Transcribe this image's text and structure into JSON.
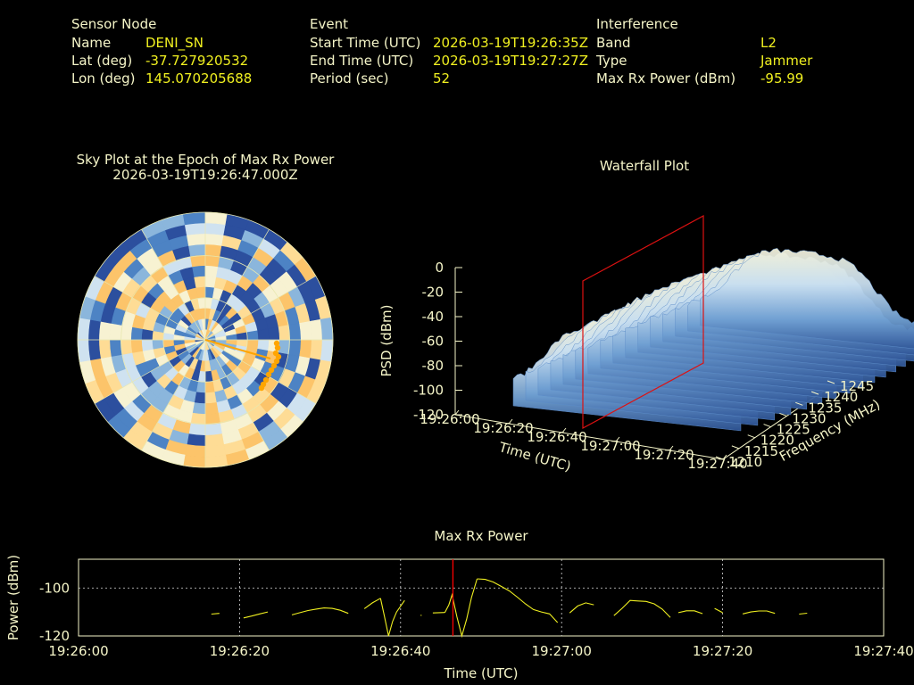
{
  "info": {
    "sensor": {
      "heading": "Sensor Node",
      "name_label": "Name",
      "name_value": "DENI_SN",
      "lat_label": "Lat (deg)",
      "lat_value": "-37.727920532",
      "lon_label": "Lon (deg)",
      "lon_value": "145.070205688"
    },
    "event": {
      "heading": "Event",
      "start_label": "Start Time (UTC)",
      "start_value": "2026-03-19T19:26:35Z",
      "end_label": "End Time (UTC)",
      "end_value": "2026-03-19T19:27:27Z",
      "period_label": "Period (sec)",
      "period_value": "52"
    },
    "interference": {
      "heading": "Interference",
      "band_label": "Band",
      "band_value": "L2",
      "type_label": "Type",
      "type_value": "Jammer",
      "maxrx_label": "Max Rx Power (dBm)",
      "maxrx_value": "-95.99"
    }
  },
  "colors": {
    "text": "#f5f5c8",
    "value": "#f0f020",
    "marker": "#ff0000",
    "track": "#ffa500",
    "line": "#f0f020"
  },
  "chart_data": [
    {
      "type": "heatmap",
      "title": "Sky Plot at the Epoch of Max Rx Power",
      "subtitle": "2026-03-19T19:26:47.000Z",
      "projection": "polar",
      "colormap": [
        "#2c4f9e",
        "#4d83c4",
        "#8bb6dc",
        "#cfe2f0",
        "#f7f2d2",
        "#fedc95",
        "#fcc46a"
      ],
      "track_color": "#ffa500"
    },
    {
      "type": "area",
      "title": "Waterfall Plot",
      "zlabel": "PSD (dBm)",
      "xlabel": "Time (UTC)",
      "ylabel": "Frequency (MHz)",
      "z_ticks": [
        "0",
        "-20",
        "-40",
        "-60",
        "-80",
        "-100",
        "-120"
      ],
      "zlim": [
        -120,
        0
      ],
      "x_ticks": [
        "19:26:00",
        "19:26:20",
        "19:26:40",
        "19:27:00",
        "19:27:20",
        "19:27:40"
      ],
      "y_ticks": [
        "1210",
        "1215",
        "1220",
        "1225",
        "1230",
        "1235",
        "1240",
        "1245"
      ],
      "ylim": [
        1210,
        1245
      ],
      "epoch_marker": "19:26:47"
    },
    {
      "type": "line",
      "title": "Max Rx Power",
      "xlabel": "Time (UTC)",
      "ylabel": "Power (dBm)",
      "x_ticks": [
        "19:26:00",
        "19:26:20",
        "19:26:40",
        "19:27:00",
        "19:27:20",
        "19:27:40"
      ],
      "y_ticks": [
        "-100",
        "-120"
      ],
      "xlim": [
        0,
        100
      ],
      "ylim": [
        -120,
        -88
      ],
      "marker_x": 46.5,
      "segments": [
        [
          [
            16.5,
            -110.9
          ],
          [
            17.5,
            -110.6
          ]
        ],
        [
          [
            20.5,
            -112.5
          ],
          [
            21.5,
            -111.7
          ],
          [
            22.5,
            -110.8
          ],
          [
            23.5,
            -110.0
          ]
        ],
        [
          [
            26.5,
            -111.2
          ],
          [
            27.5,
            -110.3
          ],
          [
            28.5,
            -109.4
          ],
          [
            29.5,
            -108.8
          ],
          [
            30.5,
            -108.3
          ],
          [
            31.5,
            -108.5
          ],
          [
            32.5,
            -109.3
          ],
          [
            33.5,
            -110.6
          ]
        ],
        [
          [
            35.5,
            -108.6
          ],
          [
            36.5,
            -106.2
          ],
          [
            37.5,
            -104.3
          ]
        ],
        [
          [
            37.5,
            -104.3
          ],
          [
            38.0,
            -112.0
          ],
          [
            38.5,
            -120.0
          ],
          [
            39.0,
            -114.0
          ],
          [
            39.5,
            -110.0
          ],
          [
            40.5,
            -105.2
          ]
        ],
        [
          [
            42.5,
            -111.5
          ],
          [
            42.6,
            -111.3
          ]
        ],
        [
          [
            44.0,
            -110.4
          ],
          [
            45.5,
            -110.2
          ]
        ],
        [
          [
            45.5,
            -110.2
          ],
          [
            46.0,
            -107.0
          ],
          [
            46.4,
            -102.8
          ],
          [
            47.0,
            -112.0
          ],
          [
            47.6,
            -120.0
          ],
          [
            48.2,
            -113.0
          ],
          [
            48.8,
            -104.0
          ],
          [
            49.5,
            -96.2
          ]
        ],
        [
          [
            49.5,
            -96.2
          ],
          [
            50.5,
            -96.4
          ],
          [
            51.5,
            -97.5
          ],
          [
            52.5,
            -99.3
          ],
          [
            53.5,
            -101.2
          ],
          [
            54.5,
            -103.8
          ],
          [
            55.5,
            -106.6
          ],
          [
            56.5,
            -109.0
          ],
          [
            57.5,
            -110.0
          ],
          [
            58.5,
            -110.8
          ],
          [
            59.5,
            -114.4
          ]
        ],
        [
          [
            61.0,
            -110.4
          ],
          [
            62.0,
            -107.5
          ],
          [
            63.0,
            -106.2
          ],
          [
            64.0,
            -107.0
          ]
        ],
        [
          [
            66.5,
            -111.5
          ],
          [
            67.5,
            -108.5
          ],
          [
            68.5,
            -105.2
          ],
          [
            69.5,
            -105.4
          ],
          [
            70.5,
            -105.6
          ],
          [
            71.5,
            -106.6
          ],
          [
            72.5,
            -108.8
          ],
          [
            73.5,
            -112.3
          ]
        ],
        [
          [
            74.5,
            -110.3
          ],
          [
            75.5,
            -109.5
          ],
          [
            76.5,
            -109.5
          ],
          [
            77.5,
            -110.7
          ]
        ],
        [
          [
            79.0,
            -108.5
          ],
          [
            80.0,
            -110.3
          ]
        ],
        [
          [
            82.5,
            -110.8
          ],
          [
            83.5,
            -110.0
          ],
          [
            84.5,
            -109.6
          ],
          [
            85.5,
            -109.6
          ],
          [
            86.5,
            -110.6
          ]
        ],
        [
          [
            89.5,
            -110.9
          ],
          [
            90.5,
            -110.5
          ]
        ]
      ]
    }
  ]
}
